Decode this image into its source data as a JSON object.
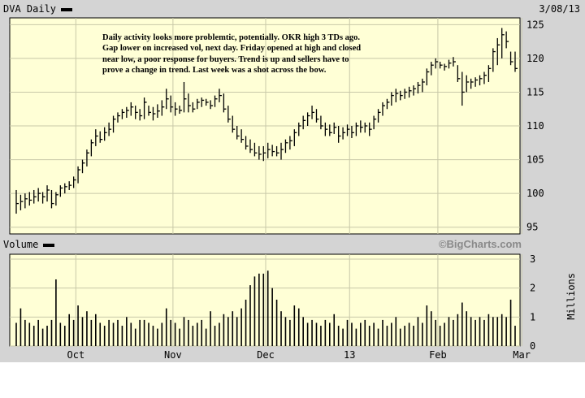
{
  "chart_data": {
    "type": "ohlc",
    "ticker_title": "DVA Daily",
    "date_label": "3/08/13",
    "volume_title": "Volume",
    "brand": "©BigCharts.com",
    "volume_unit": "Millions",
    "annotation": [
      "Daily activity looks more problemtic, potentially.  OKR high 3 TDs ago.",
      "Gap lower on increased vol, next day.  Friday opened at high and closed",
      "near low, a poor response for buyers.   Trend is up and sellers have to",
      "prove a change in trend.  Last week was a shot across the bow."
    ],
    "price_axis": {
      "min": 94,
      "max": 126,
      "ticks": [
        "95",
        "100",
        "105",
        "110",
        "115",
        "120",
        "125"
      ]
    },
    "volume_axis": {
      "min": 0,
      "max": 3,
      "ticks": [
        "0",
        "1",
        "2",
        "3"
      ]
    },
    "months": [
      {
        "label": "Oct",
        "index": 14
      },
      {
        "label": "Nov",
        "index": 36
      },
      {
        "label": "Dec",
        "index": 57
      },
      {
        "label": "13",
        "index": 76
      },
      {
        "label": "Feb",
        "index": 96
      },
      {
        "label": "Mar",
        "index": 115
      }
    ],
    "month_grid": [
      14,
      36,
      57,
      76,
      96,
      115
    ],
    "bars": [
      {
        "h": 100.5,
        "l": 97.0,
        "c": 98.5,
        "v": 0.8
      },
      {
        "h": 99.8,
        "l": 97.5,
        "c": 98.8,
        "v": 1.3
      },
      {
        "h": 100.0,
        "l": 97.8,
        "c": 99.2,
        "v": 0.9
      },
      {
        "h": 100.2,
        "l": 98.2,
        "c": 99.0,
        "v": 0.8
      },
      {
        "h": 100.5,
        "l": 98.5,
        "c": 99.5,
        "v": 0.7
      },
      {
        "h": 100.8,
        "l": 98.8,
        "c": 100.0,
        "v": 0.9
      },
      {
        "h": 100.2,
        "l": 98.5,
        "c": 99.5,
        "v": 0.6
      },
      {
        "h": 101.2,
        "l": 98.8,
        "c": 100.5,
        "v": 0.7
      },
      {
        "h": 100.5,
        "l": 97.8,
        "c": 98.5,
        "v": 0.9
      },
      {
        "h": 100.2,
        "l": 98.2,
        "c": 99.8,
        "v": 2.3
      },
      {
        "h": 101.2,
        "l": 99.5,
        "c": 100.8,
        "v": 0.8
      },
      {
        "h": 101.5,
        "l": 100.0,
        "c": 101.0,
        "v": 0.7
      },
      {
        "h": 101.8,
        "l": 100.5,
        "c": 101.2,
        "v": 1.1
      },
      {
        "h": 102.5,
        "l": 100.8,
        "c": 102.0,
        "v": 0.9
      },
      {
        "h": 104.0,
        "l": 101.5,
        "c": 103.5,
        "v": 1.4
      },
      {
        "h": 105.0,
        "l": 103.0,
        "c": 104.5,
        "v": 1.0
      },
      {
        "h": 106.5,
        "l": 104.0,
        "c": 106.0,
        "v": 1.2
      },
      {
        "h": 108.0,
        "l": 105.5,
        "c": 107.5,
        "v": 0.9
      },
      {
        "h": 109.5,
        "l": 107.0,
        "c": 108.5,
        "v": 1.1
      },
      {
        "h": 109.2,
        "l": 107.5,
        "c": 108.0,
        "v": 0.8
      },
      {
        "h": 109.8,
        "l": 107.8,
        "c": 109.0,
        "v": 0.7
      },
      {
        "h": 110.5,
        "l": 108.5,
        "c": 109.5,
        "v": 0.9
      },
      {
        "h": 111.5,
        "l": 109.0,
        "c": 111.0,
        "v": 0.8
      },
      {
        "h": 112.0,
        "l": 110.5,
        "c": 111.5,
        "v": 0.9
      },
      {
        "h": 112.5,
        "l": 111.0,
        "c": 112.0,
        "v": 0.7
      },
      {
        "h": 112.8,
        "l": 111.2,
        "c": 112.3,
        "v": 1.0
      },
      {
        "h": 113.5,
        "l": 111.5,
        "c": 112.8,
        "v": 0.8
      },
      {
        "h": 113.0,
        "l": 111.0,
        "c": 112.0,
        "v": 0.6
      },
      {
        "h": 112.5,
        "l": 110.8,
        "c": 111.5,
        "v": 0.9
      },
      {
        "h": 114.2,
        "l": 111.0,
        "c": 113.5,
        "v": 0.9
      },
      {
        "h": 113.0,
        "l": 111.5,
        "c": 112.0,
        "v": 0.8
      },
      {
        "h": 112.8,
        "l": 110.8,
        "c": 111.8,
        "v": 0.7
      },
      {
        "h": 113.2,
        "l": 111.2,
        "c": 112.2,
        "v": 0.6
      },
      {
        "h": 113.8,
        "l": 111.5,
        "c": 112.8,
        "v": 0.8
      },
      {
        "h": 115.5,
        "l": 112.5,
        "c": 114.0,
        "v": 1.3
      },
      {
        "h": 114.5,
        "l": 112.0,
        "c": 112.8,
        "v": 0.9
      },
      {
        "h": 113.5,
        "l": 111.5,
        "c": 112.5,
        "v": 0.8
      },
      {
        "h": 113.0,
        "l": 111.8,
        "c": 112.3,
        "v": 0.6
      },
      {
        "h": 116.5,
        "l": 112.0,
        "c": 114.0,
        "v": 1.0
      },
      {
        "h": 114.8,
        "l": 112.0,
        "c": 113.0,
        "v": 0.9
      },
      {
        "h": 113.5,
        "l": 112.0,
        "c": 112.5,
        "v": 0.7
      },
      {
        "h": 114.0,
        "l": 112.5,
        "c": 113.5,
        "v": 0.8
      },
      {
        "h": 114.2,
        "l": 112.8,
        "c": 113.8,
        "v": 0.9
      },
      {
        "h": 114.0,
        "l": 113.0,
        "c": 113.5,
        "v": 0.6
      },
      {
        "h": 113.8,
        "l": 112.5,
        "c": 113.0,
        "v": 1.2
      },
      {
        "h": 114.5,
        "l": 112.8,
        "c": 114.0,
        "v": 0.7
      },
      {
        "h": 115.5,
        "l": 113.5,
        "c": 114.5,
        "v": 0.8
      },
      {
        "h": 114.8,
        "l": 112.0,
        "c": 112.5,
        "v": 1.1
      },
      {
        "h": 113.0,
        "l": 110.5,
        "c": 111.0,
        "v": 1.0
      },
      {
        "h": 111.5,
        "l": 109.0,
        "c": 109.5,
        "v": 1.2
      },
      {
        "h": 110.0,
        "l": 108.0,
        "c": 108.5,
        "v": 1.0
      },
      {
        "h": 109.5,
        "l": 107.5,
        "c": 108.0,
        "v": 1.3
      },
      {
        "h": 108.5,
        "l": 106.5,
        "c": 107.0,
        "v": 1.6
      },
      {
        "h": 108.0,
        "l": 106.0,
        "c": 106.5,
        "v": 2.1
      },
      {
        "h": 107.5,
        "l": 105.5,
        "c": 106.0,
        "v": 2.4
      },
      {
        "h": 107.0,
        "l": 105.0,
        "c": 105.8,
        "v": 2.5
      },
      {
        "h": 107.0,
        "l": 104.8,
        "c": 106.0,
        "v": 2.5
      },
      {
        "h": 107.5,
        "l": 105.2,
        "c": 106.5,
        "v": 2.6
      },
      {
        "h": 107.2,
        "l": 105.5,
        "c": 106.2,
        "v": 2.0
      },
      {
        "h": 107.0,
        "l": 105.5,
        "c": 106.0,
        "v": 1.6
      },
      {
        "h": 107.5,
        "l": 105.0,
        "c": 106.5,
        "v": 1.2
      },
      {
        "h": 108.0,
        "l": 106.0,
        "c": 107.5,
        "v": 1.0
      },
      {
        "h": 108.5,
        "l": 106.5,
        "c": 107.8,
        "v": 0.9
      },
      {
        "h": 109.5,
        "l": 107.0,
        "c": 109.0,
        "v": 1.4
      },
      {
        "h": 110.5,
        "l": 108.5,
        "c": 110.0,
        "v": 1.3
      },
      {
        "h": 111.5,
        "l": 109.5,
        "c": 110.8,
        "v": 1.0
      },
      {
        "h": 112.0,
        "l": 110.0,
        "c": 111.5,
        "v": 0.8
      },
      {
        "h": 113.0,
        "l": 111.0,
        "c": 112.0,
        "v": 0.9
      },
      {
        "h": 112.5,
        "l": 110.5,
        "c": 111.0,
        "v": 0.8
      },
      {
        "h": 111.5,
        "l": 109.5,
        "c": 110.0,
        "v": 0.7
      },
      {
        "h": 110.5,
        "l": 108.5,
        "c": 109.5,
        "v": 0.9
      },
      {
        "h": 110.2,
        "l": 108.5,
        "c": 109.0,
        "v": 0.8
      },
      {
        "h": 110.5,
        "l": 108.8,
        "c": 109.8,
        "v": 1.1
      },
      {
        "h": 110.0,
        "l": 107.5,
        "c": 108.5,
        "v": 0.7
      },
      {
        "h": 109.8,
        "l": 108.0,
        "c": 109.0,
        "v": 0.6
      },
      {
        "h": 110.2,
        "l": 108.5,
        "c": 109.5,
        "v": 0.9
      },
      {
        "h": 110.0,
        "l": 108.2,
        "c": 109.0,
        "v": 0.8
      },
      {
        "h": 110.5,
        "l": 108.5,
        "c": 110.0,
        "v": 0.6
      },
      {
        "h": 110.8,
        "l": 109.0,
        "c": 109.8,
        "v": 0.8
      },
      {
        "h": 110.5,
        "l": 109.0,
        "c": 110.0,
        "v": 0.9
      },
      {
        "h": 110.5,
        "l": 108.5,
        "c": 109.5,
        "v": 0.7
      },
      {
        "h": 111.5,
        "l": 109.5,
        "c": 111.0,
        "v": 0.8
      },
      {
        "h": 112.5,
        "l": 110.5,
        "c": 112.0,
        "v": 0.6
      },
      {
        "h": 113.5,
        "l": 111.5,
        "c": 113.0,
        "v": 0.9
      },
      {
        "h": 114.0,
        "l": 112.5,
        "c": 113.5,
        "v": 0.7
      },
      {
        "h": 115.0,
        "l": 113.0,
        "c": 114.5,
        "v": 0.8
      },
      {
        "h": 115.5,
        "l": 113.5,
        "c": 114.8,
        "v": 1.0
      },
      {
        "h": 115.2,
        "l": 113.8,
        "c": 114.5,
        "v": 0.6
      },
      {
        "h": 115.5,
        "l": 114.0,
        "c": 115.0,
        "v": 0.7
      },
      {
        "h": 115.8,
        "l": 114.2,
        "c": 115.2,
        "v": 0.8
      },
      {
        "h": 116.0,
        "l": 114.5,
        "c": 115.5,
        "v": 0.7
      },
      {
        "h": 116.5,
        "l": 114.8,
        "c": 116.0,
        "v": 1.0
      },
      {
        "h": 117.0,
        "l": 115.0,
        "c": 116.5,
        "v": 0.8
      },
      {
        "h": 118.5,
        "l": 116.0,
        "c": 118.0,
        "v": 1.4
      },
      {
        "h": 119.5,
        "l": 117.5,
        "c": 119.0,
        "v": 1.2
      },
      {
        "h": 120.0,
        "l": 118.5,
        "c": 119.5,
        "v": 0.9
      },
      {
        "h": 119.5,
        "l": 118.5,
        "c": 119.0,
        "v": 0.7
      },
      {
        "h": 119.2,
        "l": 118.2,
        "c": 118.8,
        "v": 0.8
      },
      {
        "h": 119.8,
        "l": 118.5,
        "c": 119.3,
        "v": 1.0
      },
      {
        "h": 120.2,
        "l": 118.8,
        "c": 119.5,
        "v": 0.9
      },
      {
        "h": 119.0,
        "l": 116.5,
        "c": 117.0,
        "v": 1.1
      },
      {
        "h": 118.0,
        "l": 113.0,
        "c": 115.0,
        "v": 1.5
      },
      {
        "h": 117.5,
        "l": 115.0,
        "c": 116.5,
        "v": 1.2
      },
      {
        "h": 117.0,
        "l": 115.5,
        "c": 116.5,
        "v": 1.0
      },
      {
        "h": 117.2,
        "l": 115.8,
        "c": 116.8,
        "v": 0.9
      },
      {
        "h": 117.5,
        "l": 116.0,
        "c": 117.0,
        "v": 1.0
      },
      {
        "h": 118.0,
        "l": 116.2,
        "c": 117.5,
        "v": 0.9
      },
      {
        "h": 119.0,
        "l": 116.5,
        "c": 118.5,
        "v": 1.1
      },
      {
        "h": 121.5,
        "l": 118.0,
        "c": 121.0,
        "v": 1.0
      },
      {
        "h": 123.0,
        "l": 119.0,
        "c": 122.0,
        "v": 1.0
      },
      {
        "h": 124.5,
        "l": 120.0,
        "c": 123.5,
        "v": 1.1
      },
      {
        "h": 124.0,
        "l": 121.5,
        "c": 122.5,
        "v": 1.0
      },
      {
        "h": 121.0,
        "l": 119.0,
        "c": 119.5,
        "v": 1.6
      },
      {
        "h": 121.0,
        "l": 118.0,
        "c": 118.5,
        "v": 0.7
      }
    ]
  }
}
